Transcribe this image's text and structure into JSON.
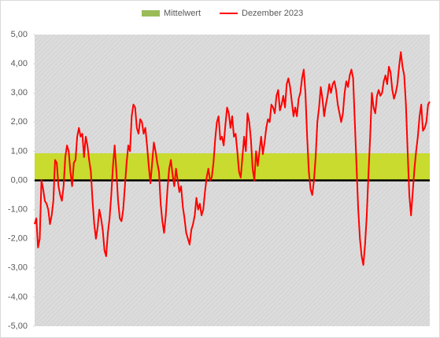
{
  "chart_data": {
    "type": "line",
    "ylim": [
      -5,
      5
    ],
    "yticks": [
      {
        "value": 5,
        "label": "5,00"
      },
      {
        "value": 4,
        "label": "4,00"
      },
      {
        "value": 3,
        "label": "3,00"
      },
      {
        "value": 2,
        "label": "2,00"
      },
      {
        "value": 1,
        "label": "1,00"
      },
      {
        "value": 0,
        "label": "0,00"
      },
      {
        "value": -1,
        "label": "-1,00"
      },
      {
        "value": -2,
        "label": "-2,00"
      },
      {
        "value": -3,
        "label": "-3,00"
      },
      {
        "value": -4,
        "label": "-4,00"
      },
      {
        "value": -5,
        "label": "-5,00"
      }
    ],
    "band": {
      "name": "Mittelwert",
      "color": "#c8db2e",
      "legend_color": "#9bbb59",
      "ylim": [
        0,
        0.93
      ]
    },
    "series": [
      {
        "name": "Dezember 2023",
        "color": "#ff0000",
        "values": [
          -1.5,
          -1.3,
          -2.3,
          -2.0,
          0.0,
          -0.3,
          -0.7,
          -0.8,
          -1.0,
          -1.5,
          -1.2,
          -0.7,
          0.7,
          0.6,
          -0.2,
          -0.5,
          -0.7,
          -0.2,
          0.8,
          1.2,
          1.0,
          0.3,
          -0.2,
          0.6,
          0.7,
          1.5,
          1.8,
          1.5,
          1.6,
          0.8,
          1.5,
          1.2,
          0.7,
          0.3,
          -0.7,
          -1.5,
          -2.0,
          -1.6,
          -1.0,
          -1.3,
          -1.7,
          -2.4,
          -2.6,
          -1.8,
          -1.3,
          -0.5,
          0.5,
          1.2,
          0.3,
          -0.7,
          -1.3,
          -1.4,
          -1.0,
          -0.2,
          0.6,
          1.2,
          1.0,
          2.2,
          2.6,
          2.5,
          1.8,
          1.6,
          2.1,
          2.0,
          1.6,
          1.8,
          1.2,
          0.5,
          -0.1,
          0.6,
          1.3,
          1.0,
          0.6,
          0.3,
          -0.8,
          -1.4,
          -1.8,
          -1.2,
          -0.3,
          0.4,
          0.7,
          0.2,
          -0.2,
          0.4,
          0.0,
          -0.4,
          -0.2,
          -0.9,
          -1.3,
          -1.8,
          -2.0,
          -2.2,
          -1.7,
          -1.5,
          -1.2,
          -0.6,
          -1.0,
          -0.8,
          -1.2,
          -1.0,
          -0.4,
          0.1,
          0.4,
          0.0,
          0.1,
          0.6,
          1.4,
          2.0,
          2.2,
          1.4,
          1.5,
          1.2,
          1.9,
          2.5,
          2.3,
          1.8,
          2.2,
          1.5,
          1.6,
          1.0,
          0.3,
          0.1,
          0.8,
          1.5,
          1.0,
          2.3,
          2.0,
          1.4,
          0.4,
          0.0,
          1.0,
          0.5,
          1.0,
          1.5,
          0.9,
          1.3,
          1.8,
          2.1,
          2.0,
          2.6,
          2.5,
          2.3,
          2.9,
          3.1,
          2.4,
          2.6,
          2.9,
          2.5,
          3.3,
          3.5,
          3.2,
          2.7,
          2.2,
          2.5,
          2.2,
          2.8,
          3.0,
          3.5,
          3.8,
          3.0,
          1.5,
          0.3,
          -0.3,
          -0.5,
          0.0,
          0.8,
          2.0,
          2.5,
          3.2,
          2.8,
          2.2,
          2.6,
          2.9,
          3.3,
          3.0,
          3.3,
          3.4,
          3.1,
          2.6,
          2.3,
          2.0,
          2.3,
          3.0,
          3.4,
          3.2,
          3.6,
          3.8,
          3.5,
          2.0,
          0.5,
          -1.0,
          -2.0,
          -2.6,
          -2.9,
          -2.2,
          -1.2,
          0.2,
          1.5,
          3.0,
          2.5,
          2.3,
          2.9,
          3.1,
          2.9,
          3.0,
          3.4,
          3.6,
          3.3,
          3.9,
          3.7,
          3.1,
          2.8,
          3.0,
          3.3,
          3.9,
          4.4,
          3.9,
          3.6,
          2.6,
          1.0,
          -0.5,
          -1.2,
          -0.4,
          0.4,
          1.0,
          1.5,
          2.2,
          2.6,
          1.7,
          1.8,
          2.0,
          2.6,
          2.7
        ]
      }
    ]
  }
}
